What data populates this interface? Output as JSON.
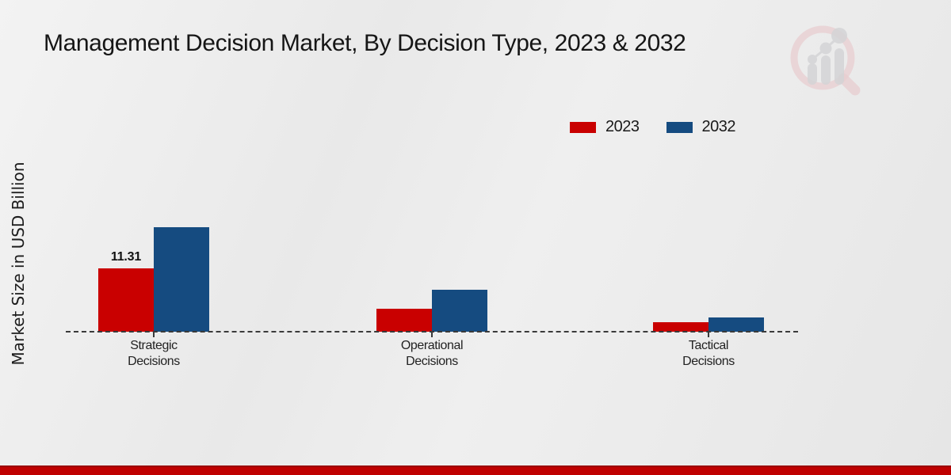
{
  "title": "Management Decision Market, By Decision Type, 2023 & 2032",
  "y_axis_label": "Market Size in USD Billion",
  "colors": {
    "series_2023": "#c90000",
    "series_2032": "#154b80",
    "footer_band": "#bf0000",
    "baseline": "#3a3a3a"
  },
  "logo_icon": "magnifier-bar-chart-watermark",
  "chart_data": {
    "type": "bar",
    "title": "Management Decision Market, By Decision Type, 2023 & 2032",
    "categories": [
      "Strategic Decisions",
      "Operational Decisions",
      "Tactical Decisions"
    ],
    "categories_display": [
      "Strategic\nDecisions",
      "Operational\nDecisions",
      "Tactical\nDecisions"
    ],
    "series": [
      {
        "name": "2023",
        "color": "#c90000",
        "values": [
          11.31,
          4.1,
          1.7
        ]
      },
      {
        "name": "2032",
        "color": "#154b80",
        "values": [
          18.7,
          7.5,
          2.6
        ]
      }
    ],
    "annotations": [
      {
        "text": "11.31",
        "series_index": 0,
        "category_index": 0
      }
    ],
    "xlabel": "",
    "ylabel": "Market Size in USD Billion",
    "ylim": [
      0,
      20
    ],
    "grid": false,
    "legend_position": "top-right",
    "baseline_style": "dashed"
  }
}
